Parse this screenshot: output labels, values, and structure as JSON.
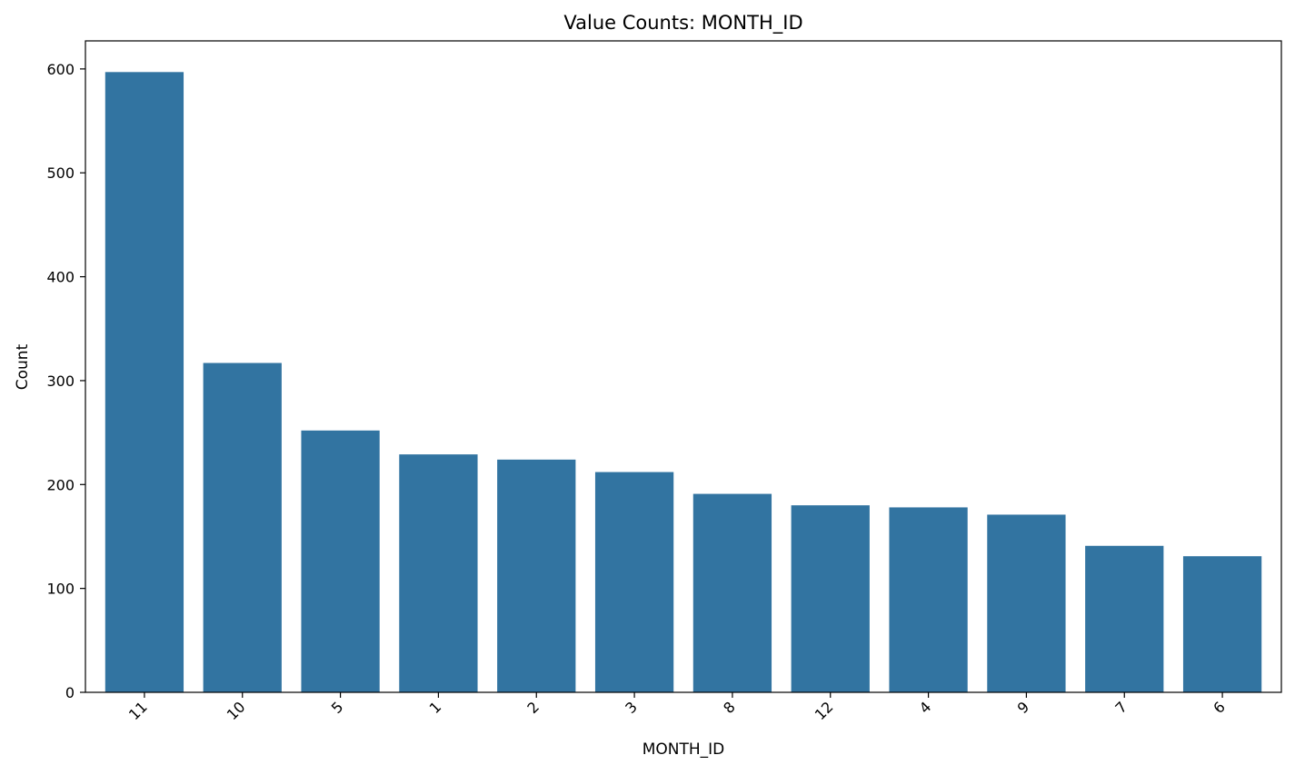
{
  "chart_data": {
    "type": "bar",
    "title": "Value Counts: MONTH_ID",
    "xlabel": "MONTH_ID",
    "ylabel": "Count",
    "categories": [
      "11",
      "10",
      "5",
      "1",
      "2",
      "3",
      "8",
      "12",
      "4",
      "9",
      "7",
      "6"
    ],
    "values": [
      597,
      317,
      252,
      229,
      224,
      212,
      191,
      180,
      178,
      171,
      141,
      131
    ],
    "ylim": [
      0,
      627
    ],
    "yticks": [
      0,
      100,
      200,
      300,
      400,
      500,
      600
    ],
    "ytick_labels": [
      "0",
      "100",
      "200",
      "300",
      "400",
      "500",
      "600"
    ],
    "bar_color": "#3274a1",
    "grid": false,
    "legend": "none"
  }
}
